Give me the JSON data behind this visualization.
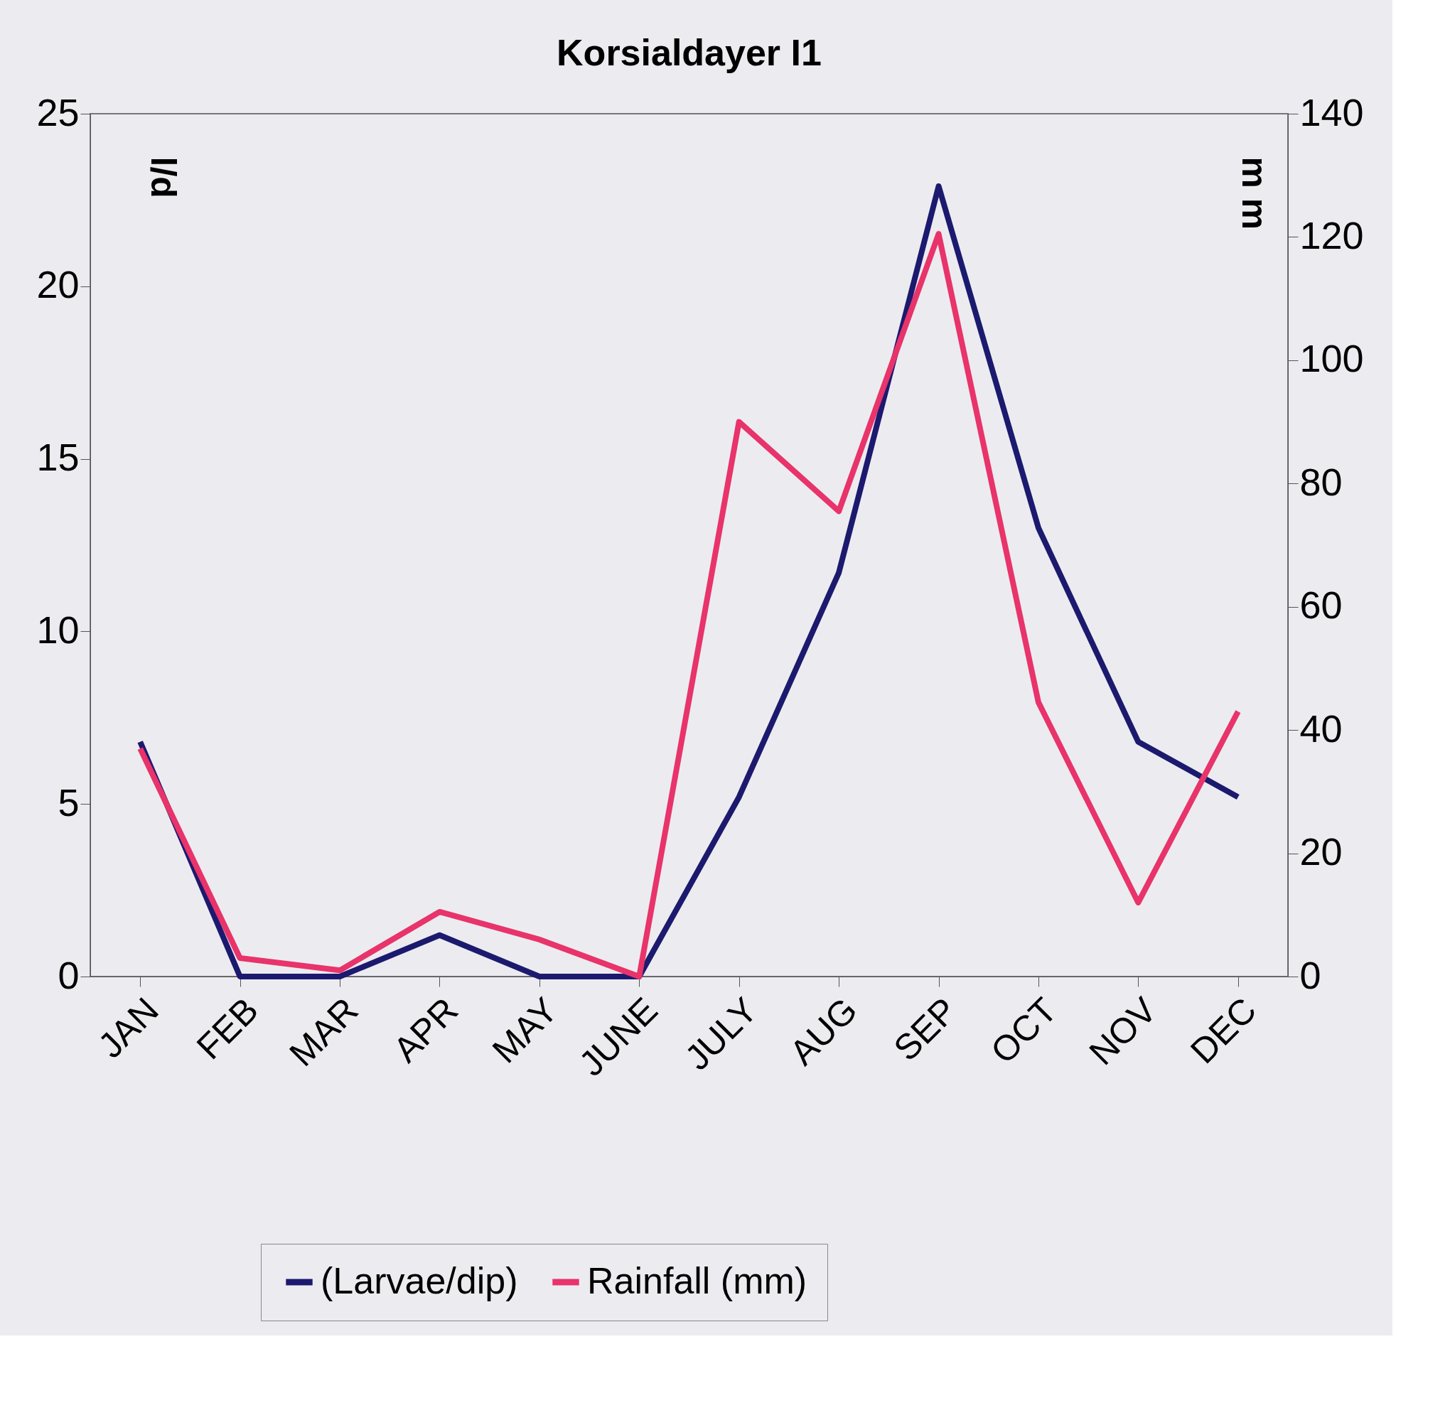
{
  "chart_data": {
    "type": "line",
    "title": "Korsialdayer I1",
    "ylabel": "l/d",
    "y2label": "m m",
    "categories": [
      "JAN",
      "FEB",
      "MAR",
      "APR",
      "MAY",
      "JUNE",
      "JULY",
      "AUG",
      "SEP",
      "OCT",
      "NOV",
      "DEC"
    ],
    "series": [
      {
        "name": "(Larvae/dip)",
        "color": "#1c1a6e",
        "values": [
          6.8,
          0,
          0,
          1.2,
          0,
          0,
          5.2,
          11.7,
          22.9,
          13,
          6.8,
          5.2
        ]
      },
      {
        "name": "Rainfall (mm)",
        "color": "#e8336b",
        "axis": "y2",
        "values": [
          37,
          3,
          1,
          10.5,
          6,
          0,
          90,
          75.5,
          120.5,
          44.5,
          12,
          43
        ]
      }
    ],
    "ylim": [
      0,
      25
    ],
    "yticks": [
      0,
      5,
      10,
      15,
      20,
      25
    ],
    "y2lim": [
      0,
      140
    ],
    "y2ticks": [
      0,
      20,
      40,
      60,
      80,
      100,
      120,
      140
    ],
    "grid": false,
    "legend": "bottom",
    "marker": "none",
    "line_style": "solid"
  }
}
